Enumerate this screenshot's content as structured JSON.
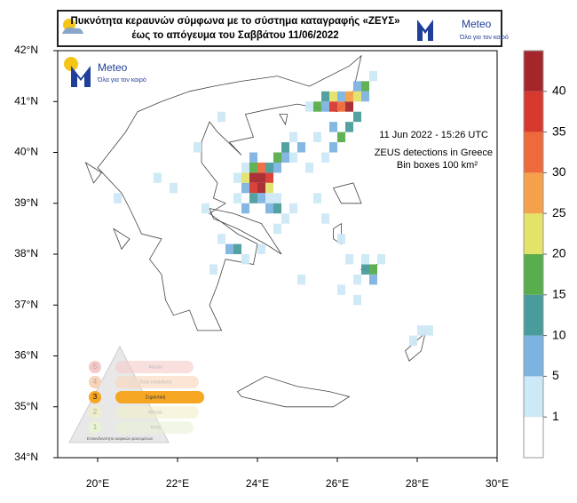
{
  "header": {
    "title_line1": "Πυκνότητα κεραυνών σύμφωνα με το σύστημα καταγραφής «ΖΕΥΣ»",
    "title_line2": "έως το απόγευμα του Σαββάτου 11/06/2022",
    "logo": "Meteo",
    "slogan": "Όλα για τον καιρό"
  },
  "map": {
    "xlim": [
      19,
      30
    ],
    "ylim": [
      34,
      42
    ],
    "xticks": [
      {
        "value": 20,
        "label": "20°E"
      },
      {
        "value": 22,
        "label": "22°E"
      },
      {
        "value": 24,
        "label": "24°E"
      },
      {
        "value": 26,
        "label": "26°E"
      },
      {
        "value": 28,
        "label": "28°E"
      },
      {
        "value": 30,
        "label": "30°E"
      }
    ],
    "yticks": [
      {
        "value": 34,
        "label": "34°N"
      },
      {
        "value": 35,
        "label": "35°N"
      },
      {
        "value": 36,
        "label": "36°N"
      },
      {
        "value": 37,
        "label": "37°N"
      },
      {
        "value": 38,
        "label": "38°N"
      },
      {
        "value": 39,
        "label": "39°N"
      },
      {
        "value": 40,
        "label": "40°N"
      },
      {
        "value": 41,
        "label": "41°N"
      },
      {
        "value": 42,
        "label": "42°N"
      }
    ],
    "logo": "Meteo",
    "slogan": "Όλα για τον καιρό",
    "annotations": [
      "11  Jun 2022 - 15:26 UTC",
      "ZEUS detections in Greece",
      "Bin boxes 100 km²"
    ],
    "cells": [
      [
        23.9,
        39.5,
        44
      ],
      [
        24.1,
        39.5,
        42
      ],
      [
        24.1,
        39.3,
        41
      ],
      [
        23.9,
        39.3,
        38
      ],
      [
        24.3,
        39.5,
        36
      ],
      [
        24.1,
        39.7,
        33
      ],
      [
        23.7,
        39.5,
        22
      ],
      [
        23.9,
        39.7,
        18
      ],
      [
        24.3,
        39.3,
        24
      ],
      [
        24.3,
        39.7,
        12
      ],
      [
        24.5,
        39.7,
        8
      ],
      [
        24.5,
        39.9,
        17
      ],
      [
        24.7,
        40.1,
        13
      ],
      [
        24.7,
        39.9,
        6
      ],
      [
        23.7,
        39.3,
        9
      ],
      [
        23.5,
        39.5,
        4
      ],
      [
        23.9,
        39.1,
        12
      ],
      [
        24.1,
        39.1,
        8
      ],
      [
        24.3,
        39.1,
        3
      ],
      [
        23.5,
        39.1,
        3
      ],
      [
        24.5,
        39.1,
        3
      ],
      [
        23.9,
        39.9,
        6
      ],
      [
        23.7,
        39.7,
        3
      ],
      [
        24.9,
        39.9,
        4
      ],
      [
        25.1,
        40.1,
        5
      ],
      [
        24.9,
        40.3,
        3
      ],
      [
        25.5,
        40.9,
        18
      ],
      [
        25.7,
        41.1,
        12
      ],
      [
        25.9,
        41.1,
        23
      ],
      [
        26.1,
        40.9,
        34
      ],
      [
        25.9,
        40.9,
        38
      ],
      [
        26.3,
        40.9,
        41
      ],
      [
        26.3,
        41.1,
        28
      ],
      [
        26.5,
        41.1,
        20
      ],
      [
        26.7,
        41.3,
        16
      ],
      [
        26.5,
        41.3,
        8
      ],
      [
        26.1,
        41.1,
        9
      ],
      [
        25.7,
        40.9,
        7
      ],
      [
        25.3,
        40.9,
        4
      ],
      [
        26.7,
        41.1,
        5
      ],
      [
        26.9,
        41.5,
        4
      ],
      [
        26.5,
        40.7,
        12
      ],
      [
        26.3,
        40.5,
        14
      ],
      [
        26.1,
        40.3,
        18
      ],
      [
        25.9,
        40.1,
        8
      ],
      [
        25.7,
        39.9,
        4
      ],
      [
        25.5,
        40.3,
        3
      ],
      [
        25.9,
        40.5,
        6
      ],
      [
        24.3,
        38.9,
        9
      ],
      [
        24.5,
        38.9,
        12
      ],
      [
        24.7,
        38.7,
        4
      ],
      [
        24.5,
        38.5,
        3
      ],
      [
        23.7,
        38.9,
        6
      ],
      [
        23.1,
        38.3,
        4
      ],
      [
        23.3,
        38.1,
        7
      ],
      [
        23.5,
        38.1,
        10
      ],
      [
        23.7,
        37.9,
        3
      ],
      [
        24.1,
        38.1,
        4
      ],
      [
        22.9,
        37.7,
        3
      ],
      [
        26.7,
        37.7,
        12
      ],
      [
        26.9,
        37.7,
        16
      ],
      [
        26.9,
        37.5,
        8
      ],
      [
        26.5,
        37.5,
        4
      ],
      [
        26.3,
        37.9,
        3
      ],
      [
        26.1,
        37.3,
        3
      ],
      [
        27.1,
        37.9,
        4
      ],
      [
        26.7,
        37.9,
        3
      ],
      [
        26.5,
        37.1,
        3
      ],
      [
        28.1,
        36.5,
        4
      ],
      [
        27.9,
        36.3,
        3
      ],
      [
        28.3,
        36.5,
        3
      ],
      [
        20.5,
        39.1,
        3
      ],
      [
        21.5,
        39.5,
        3
      ],
      [
        22.5,
        40.1,
        3
      ],
      [
        23.1,
        40.7,
        3
      ],
      [
        25.3,
        39.7,
        3
      ],
      [
        25.7,
        38.7,
        3
      ],
      [
        26.1,
        38.3,
        3
      ],
      [
        25.1,
        37.5,
        3
      ],
      [
        22.7,
        38.9,
        3
      ],
      [
        21.9,
        39.3,
        3
      ],
      [
        24.9,
        38.9,
        4
      ],
      [
        25.5,
        39.1,
        3
      ]
    ],
    "colorbar": {
      "ticks": [
        1,
        5,
        10,
        15,
        20,
        25,
        30,
        35,
        40
      ],
      "colors": [
        "#ffffff",
        "#cde8f6",
        "#7db3e0",
        "#4a9c9c",
        "#58ad4c",
        "#e3e36a",
        "#f5a04a",
        "#ee6a3a",
        "#d8392f",
        "#a5262a"
      ]
    },
    "risk_legend": {
      "levels": [
        {
          "number": "5",
          "label": "Ακραία"
        },
        {
          "number": "4",
          "label": "Πολύ επικίνδυνη"
        },
        {
          "number": "3",
          "label": "Σημαντική"
        },
        {
          "number": "2",
          "label": "Μέτρια"
        },
        {
          "number": "1",
          "label": "Ήπια"
        }
      ],
      "footer": "Επικινδυνότητα καιρικών φαινομένων"
    }
  }
}
